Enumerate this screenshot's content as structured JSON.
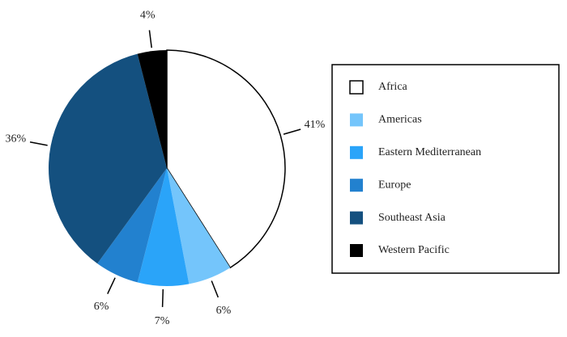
{
  "chart_data": {
    "type": "pie",
    "categories": [
      "Africa",
      "Americas",
      "Eastern Mediterranean",
      "Europe",
      "Southeast Asia",
      "Western Pacific"
    ],
    "values": [
      41,
      6,
      7,
      6,
      36,
      4
    ],
    "value_labels": [
      "41%",
      "6%",
      "7%",
      "6%",
      "36%",
      "4%"
    ],
    "colors": [
      "#ffffff",
      "#74c5fb",
      "#2aa4f9",
      "#2281cf",
      "#14507f",
      "#000000"
    ],
    "legend": "right"
  }
}
